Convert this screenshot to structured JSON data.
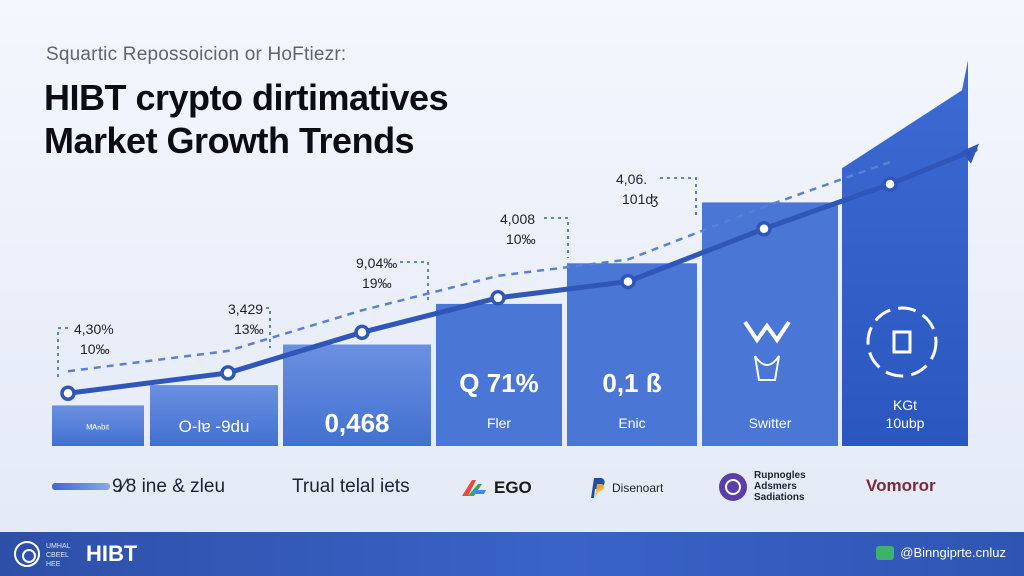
{
  "header": {
    "subtitle": "Squartic Repossoicion or HoFtiezr:",
    "title_line1": "HIBT crypto dirtimatives",
    "title_line2": "Market Growth Trends"
  },
  "chart_data": {
    "type": "bar",
    "categories": [
      "ᴹᴬⁿᵇᶦᵗ",
      "O-lɐ -9du",
      "0,468",
      "Q 71%",
      "0,1 ß",
      "Switter",
      "KGt 10ubp"
    ],
    "bar_labels": [
      "ᴹᴬⁿᵇᶦᵗ",
      "O-lɐ -9du",
      "0,468",
      "Q 71%",
      "0,1 ß",
      "Switter",
      "KGt"
    ],
    "bar_sublabels": [
      "",
      "",
      "",
      "Fler",
      "Enic",
      "",
      "10ubp"
    ],
    "bar_values": [
      2,
      3,
      5,
      7,
      9,
      12,
      19
    ],
    "line_values": [
      2.6,
      3.6,
      5.6,
      7.3,
      8.1,
      10.7,
      12.9,
      14.6
    ],
    "annotations": [
      {
        "line1": "4,30%",
        "line2": "10‰"
      },
      {
        "line1": "3,429",
        "line2": "13‰"
      },
      {
        "line1": "9,04‰",
        "line2": "19‰"
      },
      {
        "line1": "4,008",
        "line2": "10‰"
      },
      {
        "line1": "4,06.",
        "line2": "101ʤ"
      }
    ],
    "ylim": [
      0,
      20
    ],
    "colors": {
      "bar_light": "#5f87dc",
      "bar_dark": "#2f5fc7",
      "line": "#2f56b8",
      "dashed": "#5b80d8",
      "marker_fill": "#ffffff"
    }
  },
  "legend": {
    "item1": "9⁄8 ine & zleu",
    "item2": "Trual telal iets",
    "brand1": "EGO",
    "brand2": "Disenoart",
    "brand3_l1": "Rupnogles",
    "brand3_l2": "Adsmers",
    "brand3_l3": "Sadiations",
    "brand4": "Vomoror"
  },
  "footer": {
    "small_text": "UMHAL CBEEL HEE",
    "brand": "HIBT",
    "right_text": "@Binngiprte.cnluz"
  }
}
